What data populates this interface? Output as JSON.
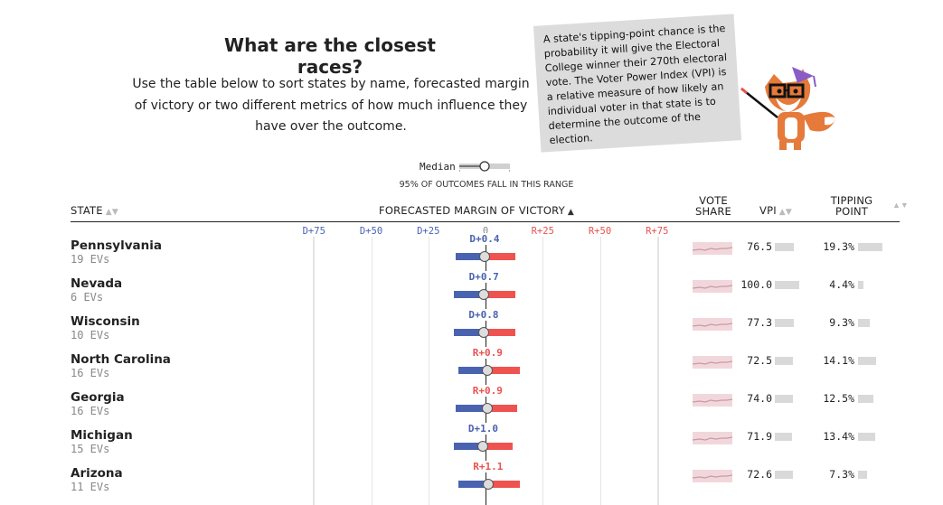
{
  "header": {
    "title": "What are the closest races?",
    "intro": "Use the table below to sort states by name, forecasted margin of victory or two different metrics of how much influence they have over the outcome."
  },
  "callout": {
    "text": "A state's tipping-point chance is the probability it will give the Electoral College winner their 270th electoral vote. The Voter Power Index (VPI) is a relative measure of how likely an individual voter in that state is to determine the outcome of the election."
  },
  "legend": {
    "median_label": "Median",
    "range_note": "95% OF OUTCOMES FALL IN THIS RANGE"
  },
  "columns": {
    "state": "STATE",
    "margin": "FORECASTED MARGIN OF VICTORY",
    "vote_share_line1": "VOTE",
    "vote_share_line2": "SHARE",
    "vpi": "VPI",
    "tipping_line1": "TIPPING",
    "tipping_line2": "POINT"
  },
  "axis_ticks": [
    "D+75",
    "D+50",
    "D+25",
    "0",
    "R+25",
    "R+50",
    "R+75"
  ],
  "colors": {
    "dem": "#4a63b0",
    "rep": "#e8524f",
    "spark_band": "#f1d7db",
    "bar_gray": "#d9d9d9"
  },
  "states": [
    {
      "name": "Pennsylvania",
      "evs": "19 EVs",
      "margin_label": "D+0.4",
      "margin": -0.4,
      "low": -13,
      "high": 13,
      "vpi": "76.5",
      "vpi_value": 76.5,
      "tipping": "19.3%",
      "tipping_value": 19.3
    },
    {
      "name": "Nevada",
      "evs": "6 EVs",
      "margin_label": "D+0.7",
      "margin": -0.7,
      "low": -14,
      "high": 13,
      "vpi": "100.0",
      "vpi_value": 100.0,
      "tipping": "4.4%",
      "tipping_value": 4.4
    },
    {
      "name": "Wisconsin",
      "evs": "10 EVs",
      "margin_label": "D+0.8",
      "margin": -0.8,
      "low": -14,
      "high": 13,
      "vpi": "77.3",
      "vpi_value": 77.3,
      "tipping": "9.3%",
      "tipping_value": 9.3
    },
    {
      "name": "North Carolina",
      "evs": "16 EVs",
      "margin_label": "R+0.9",
      "margin": 0.9,
      "low": -12,
      "high": 15,
      "vpi": "72.5",
      "vpi_value": 72.5,
      "tipping": "14.1%",
      "tipping_value": 14.1
    },
    {
      "name": "Georgia",
      "evs": "16 EVs",
      "margin_label": "R+0.9",
      "margin": 0.9,
      "low": -13,
      "high": 14,
      "vpi": "74.0",
      "vpi_value": 74.0,
      "tipping": "12.5%",
      "tipping_value": 12.5
    },
    {
      "name": "Michigan",
      "evs": "15 EVs",
      "margin_label": "D+1.0",
      "margin": -1.0,
      "low": -14,
      "high": 12,
      "vpi": "71.9",
      "vpi_value": 71.9,
      "tipping": "13.4%",
      "tipping_value": 13.4
    },
    {
      "name": "Arizona",
      "evs": "11 EVs",
      "margin_label": "R+1.1",
      "margin": 1.1,
      "low": -12,
      "high": 15,
      "vpi": "72.6",
      "vpi_value": 72.6,
      "tipping": "7.3%",
      "tipping_value": 7.3
    }
  ]
}
